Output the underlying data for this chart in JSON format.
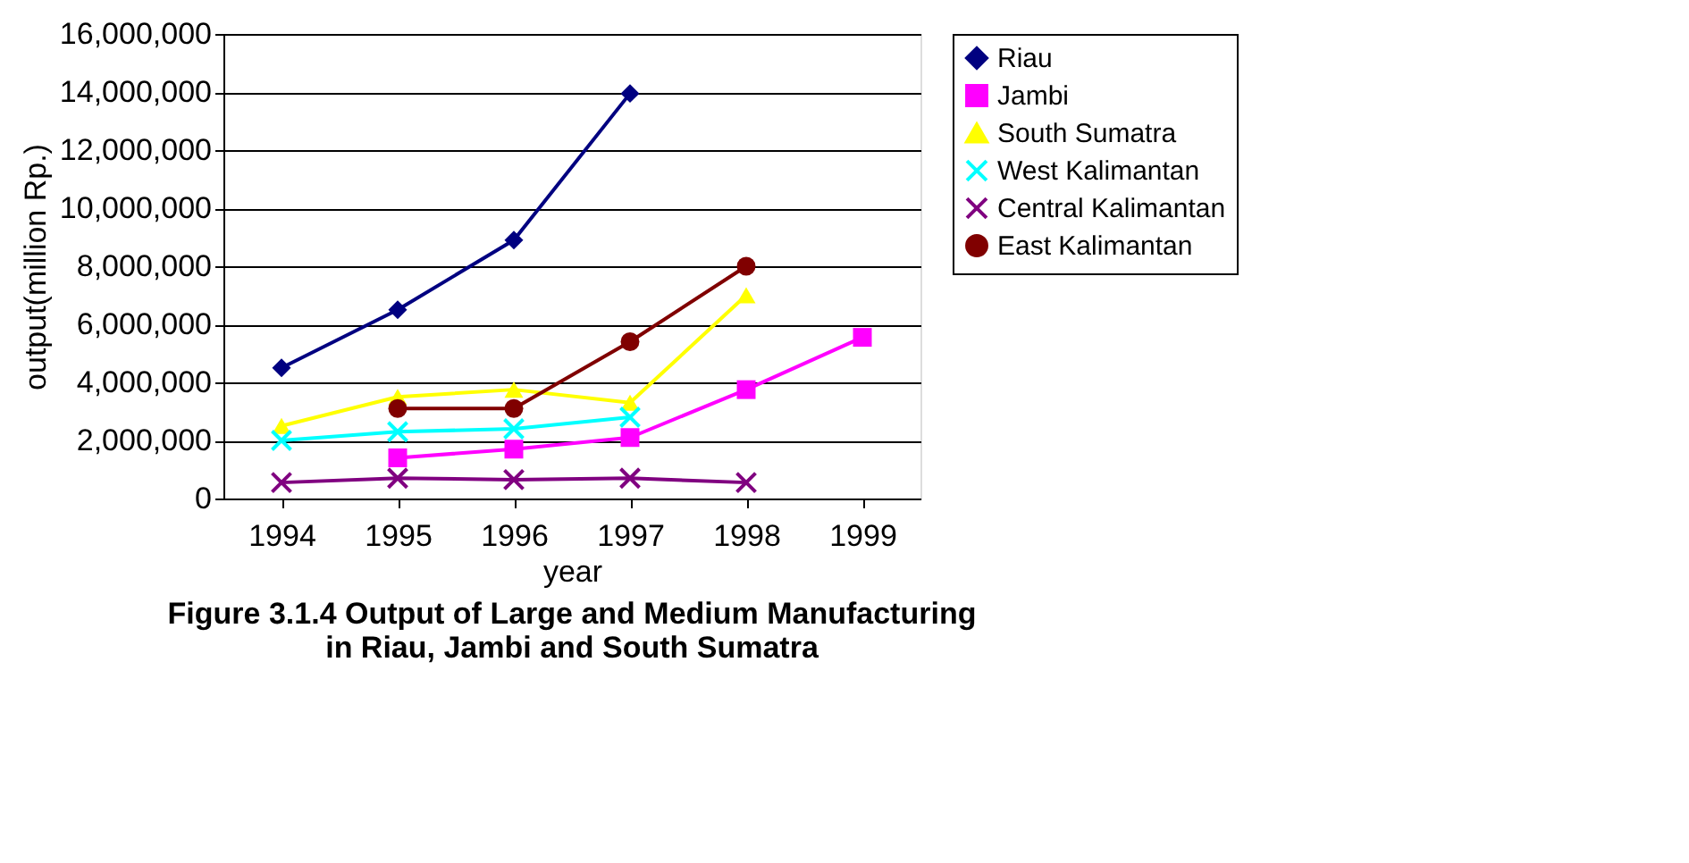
{
  "chart_data": {
    "type": "line",
    "title": "Figure 3.1.4 Output of Large and Medium Manufacturing\nin Riau, Jambi and South Sumatra",
    "xlabel": "year",
    "ylabel": "output(million Rp.)",
    "categories": [
      "1994",
      "1995",
      "1996",
      "1997",
      "1998",
      "1999"
    ],
    "ylim": [
      0,
      16000000
    ],
    "yticks": [
      0,
      {
        "value": 2000000,
        "label": "2,000,000"
      },
      {
        "value": 4000000,
        "label": "4,000,000"
      },
      {
        "value": 6000000,
        "label": "6,000,000"
      },
      {
        "value": 8000000,
        "label": "8,000,000"
      },
      {
        "value": 10000000,
        "label": "10,000,000"
      },
      {
        "value": 12000000,
        "label": "12,000,000"
      },
      {
        "value": 14000000,
        "label": "14,000,000"
      },
      {
        "value": 16000000,
        "label": "16,000,000"
      }
    ],
    "grid": "y",
    "legend": "right",
    "series": [
      {
        "name": "Riau",
        "color": "#000080",
        "marker": "diamond",
        "values": [
          4500000,
          6500000,
          8900000,
          13950000,
          null,
          null
        ]
      },
      {
        "name": "Jambi",
        "color": "#ff00ff",
        "marker": "square",
        "values": [
          null,
          1400000,
          1700000,
          2100000,
          3750000,
          5550000
        ]
      },
      {
        "name": "South Sumatra",
        "color": "#ffff00",
        "marker": "triangle",
        "values": [
          2500000,
          3500000,
          3750000,
          3300000,
          7000000,
          null
        ]
      },
      {
        "name": "West Kalimantan",
        "color": "#00ffff",
        "marker": "cross",
        "values": [
          2000000,
          2300000,
          2400000,
          2800000,
          null,
          null
        ]
      },
      {
        "name": "Central Kalimantan",
        "color": "#800080",
        "marker": "cross",
        "values": [
          550000,
          700000,
          650000,
          700000,
          550000,
          null
        ]
      },
      {
        "name": "East Kalimantan",
        "color": "#800000",
        "marker": "circle",
        "values": [
          null,
          3100000,
          3100000,
          5400000,
          8000000,
          null
        ]
      }
    ]
  }
}
